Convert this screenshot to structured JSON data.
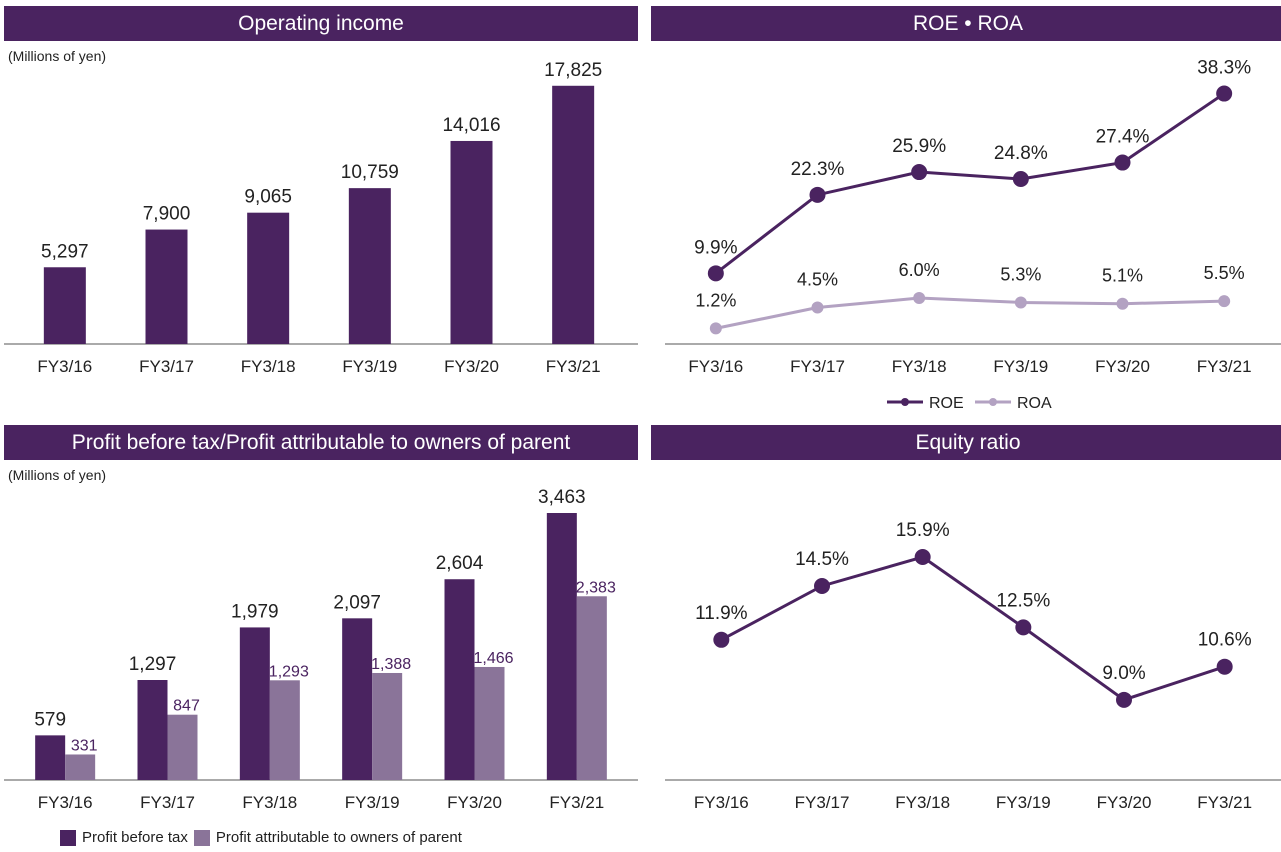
{
  "colors": {
    "header": "#4a2360",
    "dark": "#4a2360",
    "light": "#8a7499",
    "line_dark": "#4a2360",
    "line_light": "#b3a2c2"
  },
  "chart_data": [
    {
      "type": "bar",
      "title": "Operating income",
      "unit": "(Millions of yen)",
      "categories": [
        "FY3/16",
        "FY3/17",
        "FY3/18",
        "FY3/19",
        "FY3/20",
        "FY3/21"
      ],
      "values": [
        5297,
        7900,
        9065,
        10759,
        14016,
        17825
      ],
      "labels": [
        "5,297",
        "7,900",
        "9,065",
        "10,759",
        "14,016",
        "17,825"
      ],
      "ylim": [
        0,
        18500
      ]
    },
    {
      "type": "line",
      "title": "ROE • ROA",
      "categories": [
        "FY3/16",
        "FY3/17",
        "FY3/18",
        "FY3/19",
        "FY3/20",
        "FY3/21"
      ],
      "series": [
        {
          "name": "ROE",
          "values": [
            9.9,
            22.3,
            25.9,
            24.8,
            27.4,
            38.3
          ],
          "labels": [
            "9.9%",
            "22.3%",
            "25.9%",
            "24.8%",
            "27.4%",
            "38.3%"
          ]
        },
        {
          "name": "ROA",
          "values": [
            1.2,
            4.5,
            6.0,
            5.3,
            5.1,
            5.5
          ],
          "labels": [
            "1.2%",
            "4.5%",
            "6.0%",
            "5.3%",
            "5.1%",
            "5.5%"
          ]
        }
      ],
      "legend": "bottom"
    },
    {
      "type": "bar",
      "title": "Profit before tax/Profit attributable to owners of parent",
      "unit": "(Millions of yen)",
      "categories": [
        "FY3/16",
        "FY3/17",
        "FY3/18",
        "FY3/19",
        "FY3/20",
        "FY3/21"
      ],
      "series": [
        {
          "name": "Profit before tax",
          "values": [
            579,
            1297,
            1979,
            2097,
            2604,
            3463
          ],
          "labels": [
            "579",
            "1,297",
            "1,979",
            "2,097",
            "2,604",
            "3,463"
          ]
        },
        {
          "name": "Profit attributable to owners of parent",
          "values": [
            331,
            847,
            1293,
            1388,
            1466,
            2383
          ],
          "labels": [
            "331",
            "847",
            "1,293",
            "1,388",
            "1,466",
            "2,383"
          ]
        }
      ],
      "ylim": [
        0,
        3600
      ],
      "legend": "bottom-left"
    },
    {
      "type": "line",
      "title": "Equity ratio",
      "categories": [
        "FY3/16",
        "FY3/17",
        "FY3/18",
        "FY3/19",
        "FY3/20",
        "FY3/21"
      ],
      "values": [
        11.9,
        14.5,
        15.9,
        12.5,
        9.0,
        10.6
      ],
      "labels": [
        "11.9%",
        "14.5%",
        "15.9%",
        "12.5%",
        "9.0%",
        "10.6%"
      ]
    }
  ]
}
